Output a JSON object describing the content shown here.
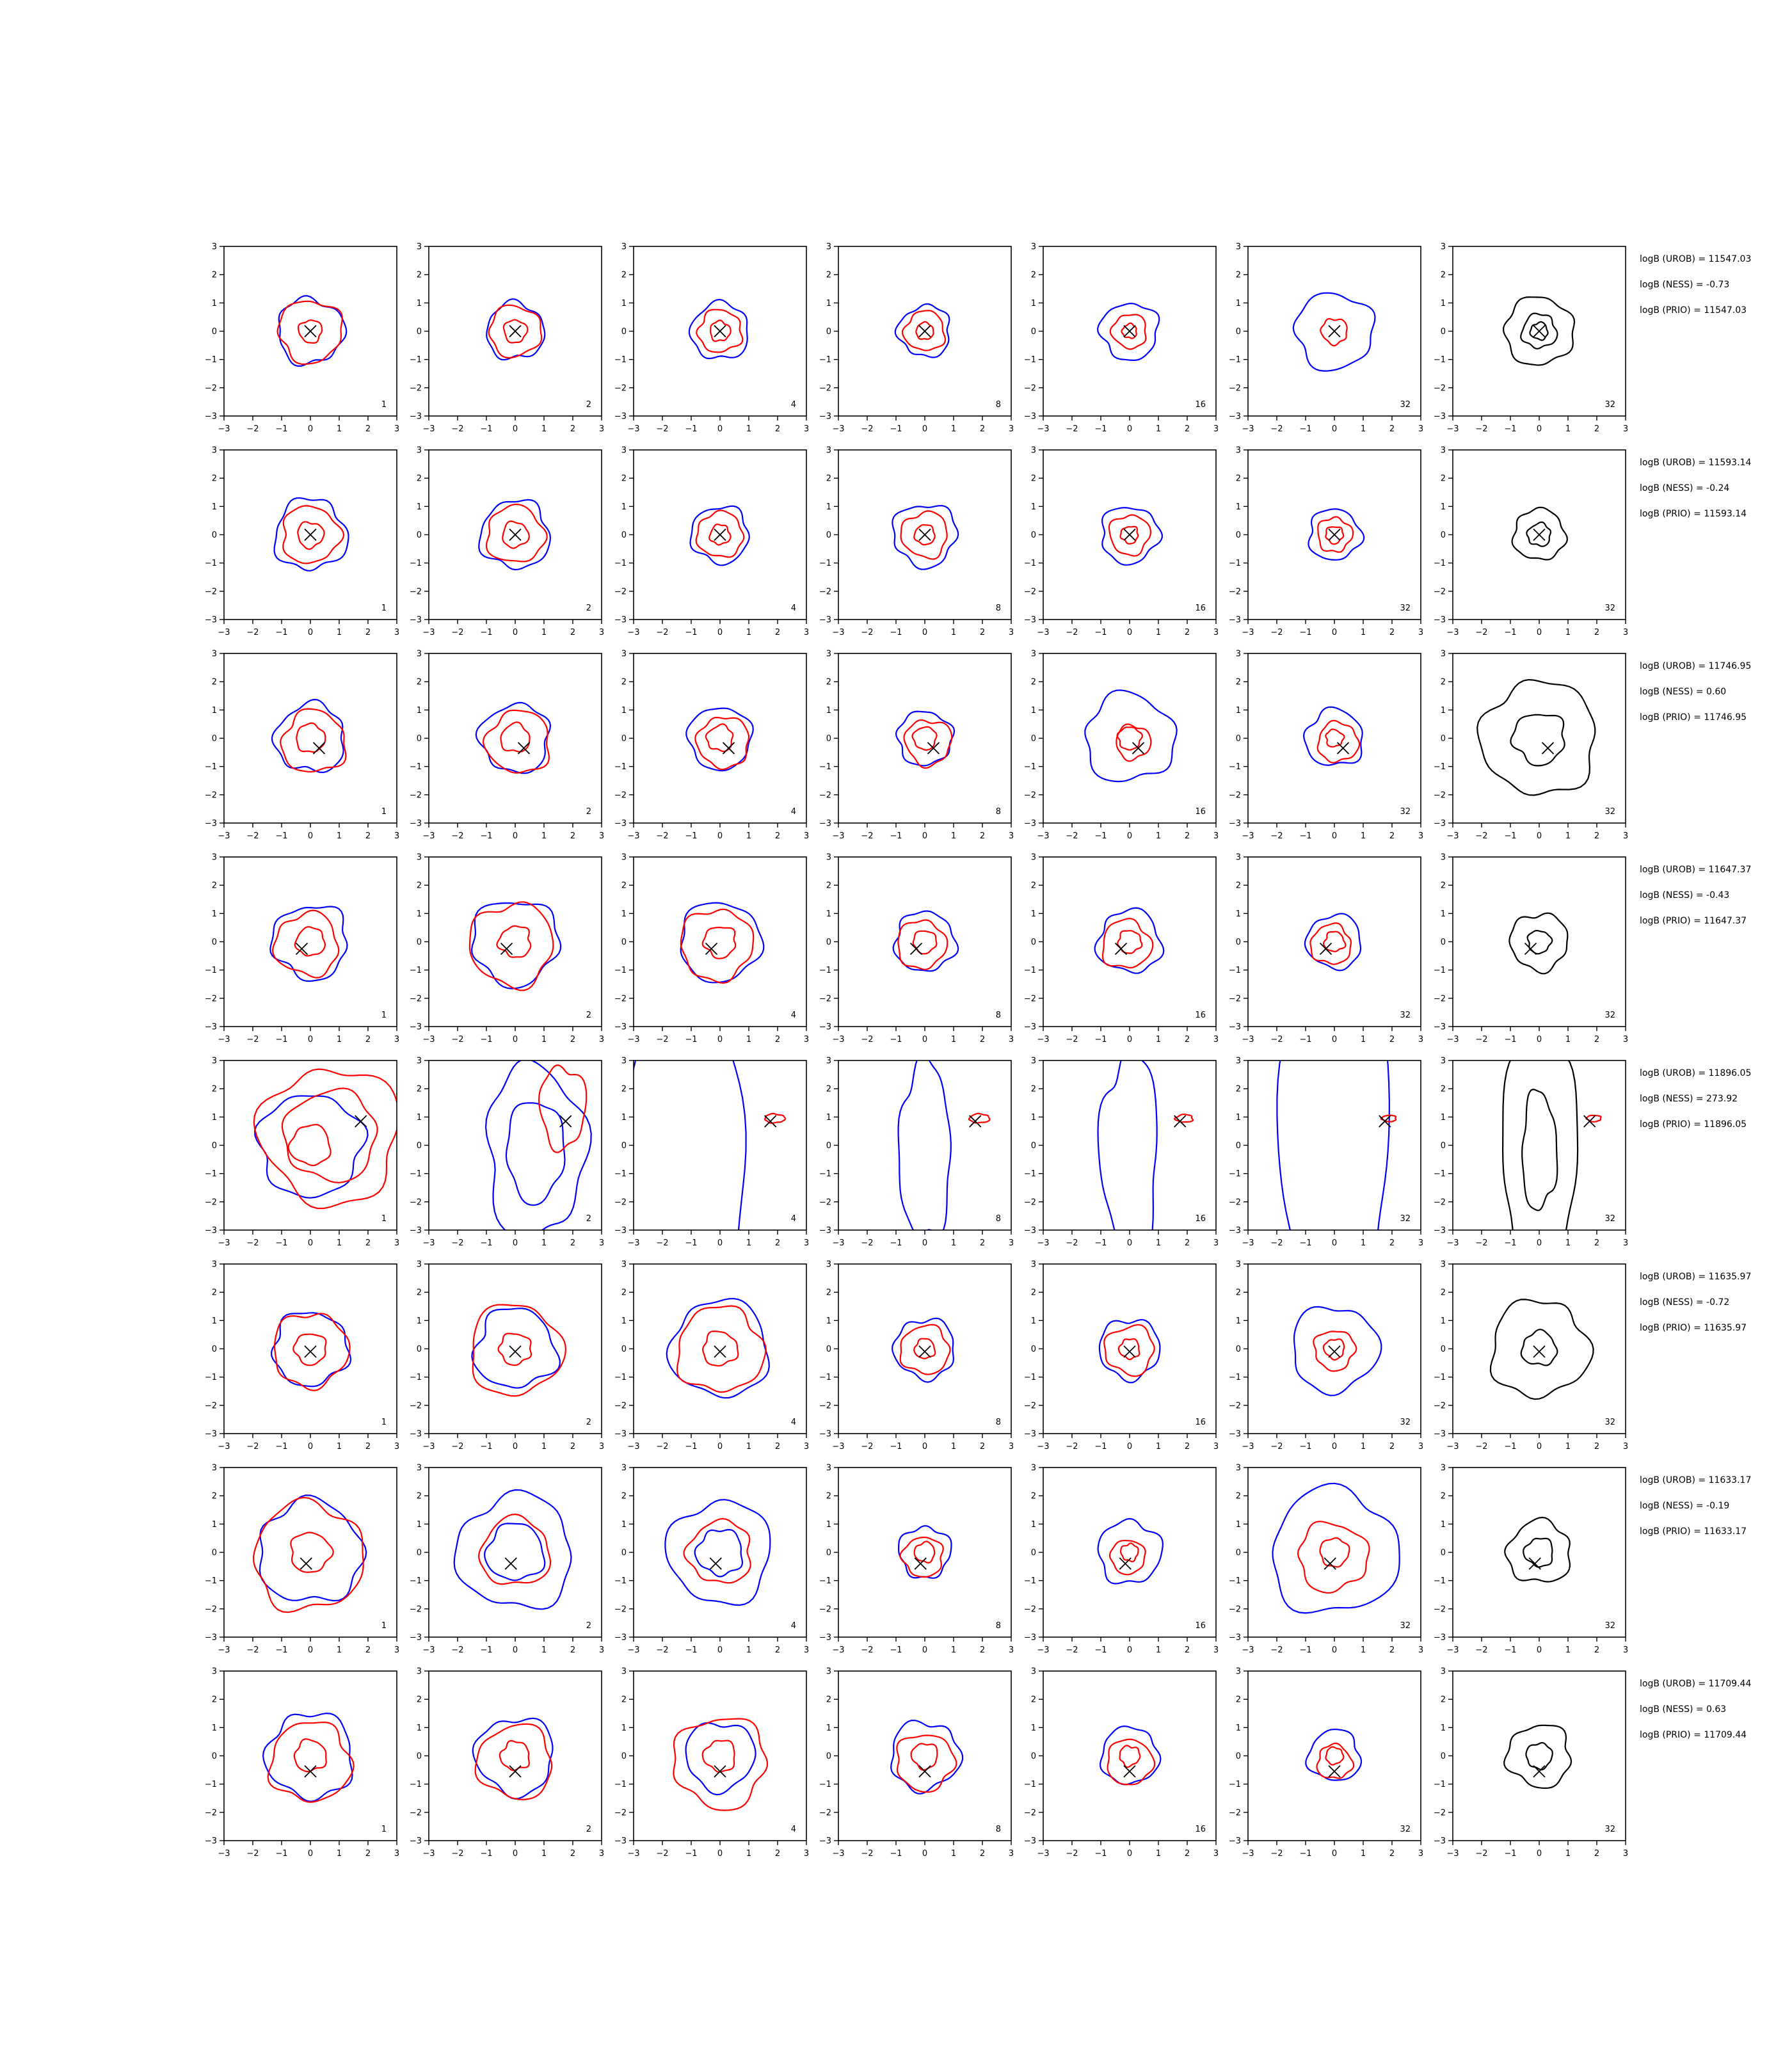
{
  "figure": {
    "axis_ticks": [
      "−3",
      "−2",
      "−1",
      "0",
      "1",
      "2",
      "3"
    ],
    "colors": {
      "blue": "#0000ff",
      "red": "#ff0000",
      "black": "#000000"
    },
    "rows": [
      {
        "panel_labels": [
          "1",
          "2",
          "4",
          "8",
          "16",
          "32",
          "32"
        ],
        "annotations": [
          "logB (UROB) = 11547.03",
          "logB (NESS) = -0.73",
          "logB (PRIO) = 11547.03"
        ],
        "marker": [
          0.0,
          0.0
        ]
      },
      {
        "panel_labels": [
          "1",
          "2",
          "4",
          "8",
          "16",
          "32",
          "32"
        ],
        "annotations": [
          "logB (UROB) = 11593.14",
          "logB (NESS) = -0.24",
          "logB (PRIO) = 11593.14"
        ],
        "marker": [
          0.0,
          0.0
        ]
      },
      {
        "panel_labels": [
          "1",
          "2",
          "4",
          "8",
          "16",
          "32",
          "32"
        ],
        "annotations": [
          "logB (UROB) = 11746.95",
          "logB (NESS) = 0.60",
          "logB (PRIO) = 11746.95"
        ],
        "marker": [
          0.3,
          -0.35
        ]
      },
      {
        "panel_labels": [
          "1",
          "2",
          "4",
          "8",
          "16",
          "32",
          "32"
        ],
        "annotations": [
          "logB (UROB) = 11647.37",
          "logB (NESS) = -0.43",
          "logB (PRIO) = 11647.37"
        ],
        "marker": [
          -0.3,
          -0.25
        ]
      },
      {
        "panel_labels": [
          "1",
          "2",
          "4",
          "8",
          "16",
          "32",
          "32"
        ],
        "annotations": [
          "logB (UROB) = 11896.05",
          "logB (NESS) = 273.92",
          "logB (PRIO) = 11896.05"
        ],
        "marker": [
          1.75,
          0.85
        ]
      },
      {
        "panel_labels": [
          "1",
          "2",
          "4",
          "8",
          "16",
          "32",
          "32"
        ],
        "annotations": [
          "logB (UROB) = 11635.97",
          "logB (NESS) = -0.72",
          "logB (PRIO) = 11635.97"
        ],
        "marker": [
          0.0,
          -0.1
        ]
      },
      {
        "panel_labels": [
          "1",
          "2",
          "4",
          "8",
          "16",
          "32",
          "32"
        ],
        "annotations": [
          "logB (UROB) = 11633.17",
          "logB (NESS) = -0.19",
          "logB (PRIO) = 11633.17"
        ],
        "marker": [
          -0.15,
          -0.4
        ]
      },
      {
        "panel_labels": [
          "1",
          "2",
          "4",
          "8",
          "16",
          "32",
          "32"
        ],
        "annotations": [
          "logB (UROB) = 11709.44",
          "logB (NESS) = 0.63",
          "logB (PRIO) = 11709.44"
        ],
        "marker": [
          0.0,
          -0.55
        ]
      }
    ]
  },
  "chart_data": {
    "type": "contour",
    "title": "",
    "xlabel": "",
    "ylabel": "",
    "xlim": [
      -3,
      3
    ],
    "ylim": [
      -3,
      3
    ],
    "grid": false,
    "layout": "8 rows x 7 columns of contour panels",
    "panels": [
      [
        {
          "blue": [
            1.15
          ],
          "red": [
            1.1,
            0.4
          ]
        },
        {
          "blue": [
            1.0
          ],
          "red": [
            0.9,
            0.4
          ]
        },
        {
          "blue": [
            1.0
          ],
          "red": [
            0.75,
            0.35
          ]
        },
        {
          "blue": [
            0.9
          ],
          "red": [
            0.7,
            0.3
          ]
        },
        {
          "blue": [
            1.0
          ],
          "red": [
            0.6,
            0.25
          ]
        },
        {
          "blue": [
            1.35
          ],
          "red": [
            0.45
          ]
        },
        {
          "black": [
            1.2,
            0.6,
            0.3
          ]
        }
      ],
      [
        {
          "blue": [
            1.25
          ],
          "red": [
            1.0,
            0.45
          ]
        },
        {
          "blue": [
            1.2
          ],
          "red": [
            1.0,
            0.45
          ]
        },
        {
          "blue": [
            1.0
          ],
          "red": [
            0.8,
            0.35
          ]
        },
        {
          "blue": [
            1.1
          ],
          "red": [
            0.8,
            0.35
          ]
        },
        {
          "blue": [
            1.0
          ],
          "red": [
            0.7,
            0.3
          ]
        },
        {
          "blue": [
            0.9
          ],
          "red": [
            0.6,
            0.3
          ]
        },
        {
          "black": [
            0.9,
            0.4
          ]
        }
      ],
      [
        {
          "blue": [
            1.2
          ],
          "red": [
            1.1,
            0.5
          ]
        },
        {
          "blue": [
            1.2
          ],
          "red": [
            1.1,
            0.5
          ]
        },
        {
          "blue": [
            1.1
          ],
          "red": [
            0.9,
            0.45
          ]
        },
        {
          "blue": [
            0.95
          ],
          "red": [
            0.8,
            0.4
          ]
        },
        {
          "blue": [
            1.55
          ],
          "red": [
            0.6,
            0.4
          ]
        },
        {
          "blue": [
            1.0
          ],
          "red": [
            0.7,
            0.3
          ]
        },
        {
          "black": [
            2.0,
            0.9
          ]
        }
      ],
      [
        {
          "blue": [
            1.3
          ],
          "red": [
            1.1,
            0.5
          ]
        },
        {
          "blue": [
            1.5
          ],
          "red": [
            1.45,
            0.55
          ]
        },
        {
          "blue": [
            1.4
          ],
          "red": [
            1.25,
            0.55
          ]
        },
        {
          "blue": [
            1.05
          ],
          "red": [
            0.85,
            0.4
          ]
        },
        {
          "blue": [
            1.1
          ],
          "red": [
            0.85,
            0.4
          ]
        },
        {
          "blue": [
            0.95
          ],
          "red": [
            0.7,
            0.35
          ]
        },
        {
          "black": [
            1.0,
            0.4
          ]
        }
      ],
      [
        {
          "blue": [
            1.8
          ],
          "red": [
            2.4,
            1.6,
            0.7
          ]
        },
        {
          "blue": [
            1.7,
            1.0
          ],
          "red": [
            0.8
          ]
        },
        {
          "blue": [
            2.0
          ],
          "red": [
            0.35
          ]
        },
        {
          "blue": [
            0.9
          ],
          "red": [
            0.35
          ]
        },
        {
          "blue": [
            1.0
          ],
          "red": [
            0.3
          ]
        },
        {
          "blue": [
            1.9
          ],
          "red": [
            0.25
          ]
        },
        {
          "black": [
            1.3,
            0.6
          ],
          "red": [
            0.25
          ]
        }
      ],
      [
        {
          "blue": [
            1.3
          ],
          "red": [
            1.3,
            0.55
          ]
        },
        {
          "blue": [
            1.4
          ],
          "red": [
            1.6,
            0.55
          ]
        },
        {
          "blue": [
            1.7
          ],
          "red": [
            1.5,
            0.6
          ]
        },
        {
          "blue": [
            1.05
          ],
          "red": [
            0.85,
            0.35
          ]
        },
        {
          "blue": [
            1.05
          ],
          "red": [
            0.85,
            0.35
          ]
        },
        {
          "blue": [
            1.5
          ],
          "red": [
            0.7,
            0.35
          ]
        },
        {
          "black": [
            1.7,
            0.6
          ]
        }
      ],
      [
        {
          "blue": [
            1.8
          ],
          "red": [
            1.9,
            0.7
          ]
        },
        {
          "blue": [
            2.0,
            1.0
          ],
          "red": [
            1.2
          ]
        },
        {
          "blue": [
            1.8,
            0.8
          ],
          "red": [
            1.1
          ]
        },
        {
          "blue": [
            0.9
          ],
          "red": [
            0.7,
            0.35
          ]
        },
        {
          "blue": [
            1.1
          ],
          "red": [
            0.6,
            0.3
          ]
        },
        {
          "blue": [
            2.2
          ],
          "red": [
            1.2,
            0.5
          ]
        },
        {
          "black": [
            1.1,
            0.5
          ]
        }
      ],
      [
        {
          "blue": [
            1.5
          ],
          "red": [
            1.4,
            0.55
          ]
        },
        {
          "blue": [
            1.35
          ],
          "red": [
            1.3,
            0.5
          ]
        },
        {
          "blue": [
            1.2
          ],
          "red": [
            1.6,
            0.55
          ]
        },
        {
          "blue": [
            1.2
          ],
          "red": [
            1.0,
            0.45
          ]
        },
        {
          "blue": [
            1.0
          ],
          "red": [
            0.8,
            0.35
          ]
        },
        {
          "blue": [
            0.9
          ],
          "red": [
            0.6,
            0.3
          ]
        },
        {
          "black": [
            1.1,
            0.45
          ]
        }
      ]
    ],
    "note": "Each panel marked with a black x at the row's marker location; panel index label at lower-right"
  }
}
